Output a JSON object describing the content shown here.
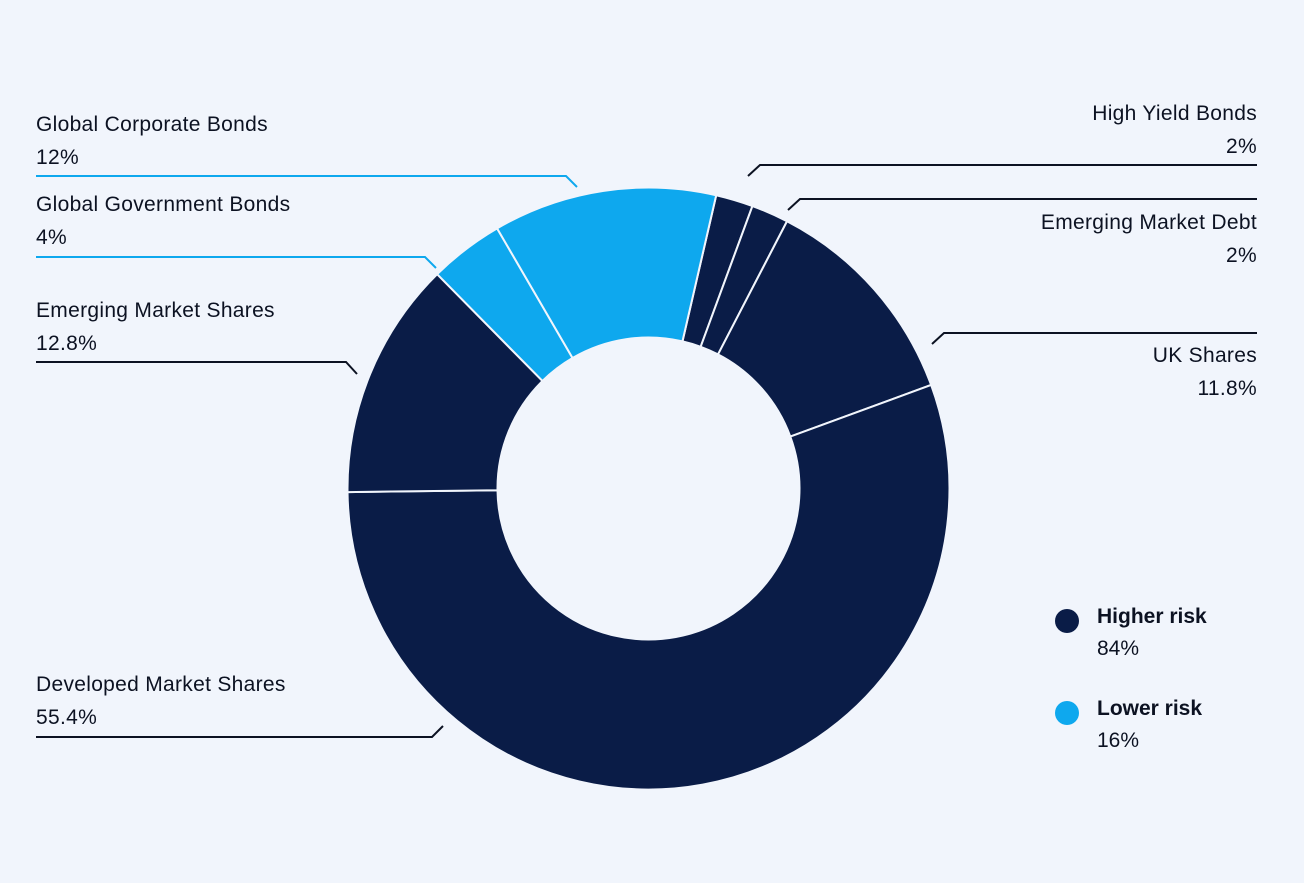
{
  "chart_data": {
    "type": "pie",
    "donut": true,
    "slices": [
      {
        "label": "High Yield Bonds",
        "value": 2,
        "value_label": "2%",
        "group": "higher"
      },
      {
        "label": "Emerging Market Debt",
        "value": 2,
        "value_label": "2%",
        "group": "higher"
      },
      {
        "label": "UK Shares",
        "value": 11.8,
        "value_label": "11.8%",
        "group": "higher"
      },
      {
        "label": "Developed Market Shares",
        "value": 55.4,
        "value_label": "55.4%",
        "group": "higher"
      },
      {
        "label": "Emerging Market Shares",
        "value": 12.8,
        "value_label": "12.8%",
        "group": "higher"
      },
      {
        "label": "Global Government Bonds",
        "value": 4,
        "value_label": "4%",
        "group": "lower"
      },
      {
        "label": "Global Corporate Bonds",
        "value": 12,
        "value_label": "12%",
        "group": "lower"
      }
    ],
    "legend": {
      "placement": "bottom-right",
      "items": [
        {
          "key": "higher",
          "label": "Higher risk",
          "value_label": "84%",
          "color": "#0a1c47"
        },
        {
          "key": "lower",
          "label": "Lower risk",
          "value_label": "16%",
          "color": "#0ea8ee"
        }
      ]
    }
  }
}
